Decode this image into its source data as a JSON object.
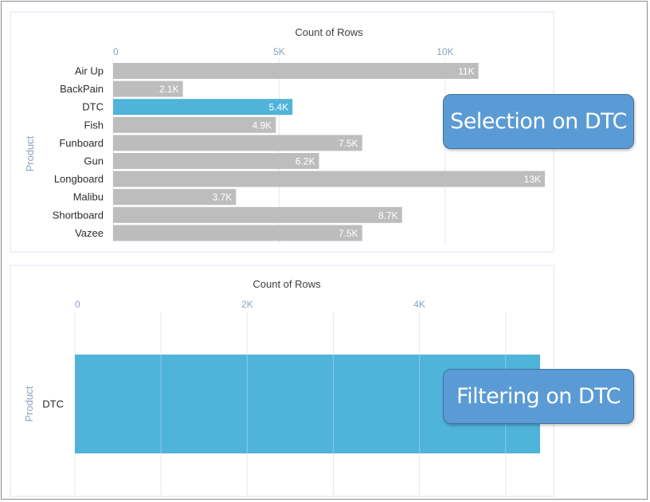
{
  "chart_data": [
    {
      "type": "bar",
      "orientation": "horizontal",
      "title": "Count of Rows",
      "ylabel": "Product",
      "xlim": [
        0,
        13000
      ],
      "xticks": [
        0,
        5000,
        10000
      ],
      "xtick_labels": [
        "0",
        "5K",
        "10K"
      ],
      "categories": [
        "Air Up",
        "BackPain",
        "DTC",
        "Fish",
        "Funboard",
        "Gun",
        "Longboard",
        "Malibu",
        "Shortboard",
        "Vazee"
      ],
      "values": [
        11000,
        2100,
        5400,
        4900,
        7500,
        6200,
        13000,
        3700,
        8700,
        7500
      ],
      "value_labels": [
        "11K",
        "2.1K",
        "5.4K",
        "4.9K",
        "7.5K",
        "6.2K",
        "13K",
        "3.7K",
        "8.7K",
        "7.5K"
      ],
      "highlighted": "DTC",
      "colors": {
        "bar": "#bdbdbd",
        "highlight": "#4fb3da"
      }
    },
    {
      "type": "bar",
      "orientation": "horizontal",
      "title": "Count of Rows",
      "ylabel": "Product",
      "xlim": [
        0,
        5400
      ],
      "xticks": [
        0,
        2000,
        4000
      ],
      "xtick_labels": [
        "0",
        "2K",
        "4K"
      ],
      "categories": [
        "DTC"
      ],
      "values": [
        5400
      ],
      "colors": {
        "bar": "#4fb3da"
      }
    }
  ],
  "callouts": {
    "selection": "Selection on DTC",
    "filtering": "Filtering on DTC"
  }
}
